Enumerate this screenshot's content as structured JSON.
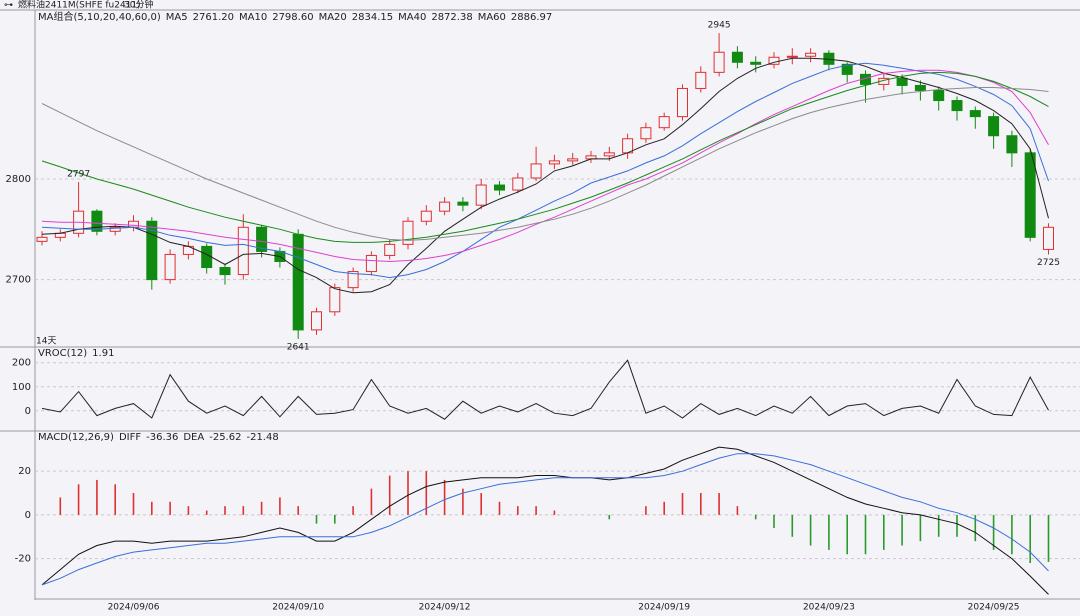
{
  "header": {
    "title": "燃料油2411M(SHFE fu2411)",
    "period": "30分钟"
  },
  "chart_data": [
    {
      "type": "candlestick",
      "legend_title": "MA组合(5,10,20,40,60,0)",
      "note": "14天",
      "ylim": [
        2633,
        2966
      ],
      "yticks": [
        2700,
        2800
      ],
      "grid": true,
      "up_color": "#e03030",
      "down_color": "#118a11",
      "open": [
        2738,
        2742,
        2746,
        2768,
        2748,
        2752,
        2758,
        2700,
        2725,
        2733,
        2712,
        2705,
        2752,
        2728,
        2745,
        2650,
        2668,
        2692,
        2708,
        2724,
        2735,
        2758,
        2768,
        2777,
        2774,
        2794,
        2789,
        2801,
        2815,
        2818,
        2820,
        2823,
        2826,
        2840,
        2851,
        2862,
        2890,
        2906,
        2926,
        2916,
        2914,
        2921,
        2922,
        2925,
        2914,
        2904,
        2894,
        2900,
        2893,
        2888,
        2878,
        2868,
        2862,
        2843,
        2826,
        2730
      ],
      "high": [
        2748,
        2750,
        2797,
        2770,
        2756,
        2764,
        2762,
        2730,
        2738,
        2736,
        2716,
        2765,
        2754,
        2732,
        2750,
        2672,
        2696,
        2712,
        2728,
        2740,
        2762,
        2774,
        2782,
        2782,
        2800,
        2798,
        2806,
        2832,
        2824,
        2826,
        2828,
        2832,
        2845,
        2856,
        2866,
        2894,
        2912,
        2945,
        2932,
        2922,
        2926,
        2930,
        2930,
        2928,
        2916,
        2908,
        2906,
        2904,
        2898,
        2892,
        2882,
        2872,
        2866,
        2848,
        2830,
        2756
      ],
      "low": [
        2734,
        2738,
        2742,
        2744,
        2744,
        2748,
        2690,
        2696,
        2720,
        2706,
        2695,
        2700,
        2722,
        2712,
        2641,
        2645,
        2664,
        2688,
        2704,
        2720,
        2730,
        2754,
        2764,
        2768,
        2770,
        2784,
        2786,
        2798,
        2810,
        2814,
        2816,
        2818,
        2820,
        2836,
        2848,
        2858,
        2886,
        2902,
        2910,
        2906,
        2910,
        2914,
        2916,
        2908,
        2896,
        2876,
        2888,
        2884,
        2878,
        2868,
        2858,
        2850,
        2830,
        2812,
        2738,
        2725
      ],
      "close": [
        2742,
        2746,
        2768,
        2748,
        2752,
        2758,
        2700,
        2725,
        2733,
        2712,
        2705,
        2752,
        2728,
        2718,
        2650,
        2668,
        2692,
        2708,
        2724,
        2735,
        2758,
        2768,
        2777,
        2774,
        2794,
        2789,
        2801,
        2815,
        2818,
        2820,
        2823,
        2826,
        2840,
        2851,
        2862,
        2890,
        2906,
        2926,
        2916,
        2914,
        2921,
        2922,
        2925,
        2914,
        2904,
        2894,
        2900,
        2893,
        2888,
        2878,
        2868,
        2862,
        2843,
        2826,
        2742,
        2752
      ],
      "annotations": [
        {
          "value": 2797,
          "label": "2797"
        },
        {
          "value": 2945,
          "label": "2945"
        },
        {
          "value": 2641,
          "label": "2641"
        },
        {
          "value": 2725,
          "label": "2725"
        }
      ],
      "series": [
        {
          "name": "MA5",
          "readout": "2761.20",
          "color": "#222222",
          "values": [
            2745,
            2746,
            2750,
            2752,
            2753,
            2752,
            2745,
            2737,
            2733,
            2725,
            2715,
            2725,
            2726,
            2723,
            2710,
            2702,
            2691,
            2687,
            2688,
            2695,
            2715,
            2731,
            2748,
            2760,
            2772,
            2780,
            2787,
            2795,
            2808,
            2813,
            2820,
            2820,
            2826,
            2834,
            2840,
            2854,
            2870,
            2887,
            2900,
            2910,
            2916,
            2920,
            2920,
            2919,
            2917,
            2912,
            2905,
            2901,
            2896,
            2891,
            2885,
            2878,
            2868,
            2855,
            2830,
            2761
          ]
        },
        {
          "name": "MA10",
          "readout": "2798.60",
          "color": "#3a6fd8",
          "values": [
            2752,
            2751,
            2750,
            2750,
            2751,
            2752,
            2749,
            2744,
            2741,
            2737,
            2734,
            2735,
            2731,
            2728,
            2722,
            2715,
            2708,
            2706,
            2705,
            2702,
            2705,
            2710,
            2718,
            2728,
            2740,
            2752,
            2760,
            2769,
            2778,
            2786,
            2796,
            2802,
            2808,
            2816,
            2823,
            2833,
            2845,
            2856,
            2867,
            2877,
            2886,
            2895,
            2902,
            2909,
            2913,
            2915,
            2913,
            2910,
            2907,
            2904,
            2899,
            2892,
            2884,
            2873,
            2850,
            2798
          ]
        },
        {
          "name": "MA20",
          "readout": "2834.15",
          "color": "#e040d0",
          "values": [
            2758,
            2757,
            2757,
            2756,
            2755,
            2754,
            2752,
            2750,
            2748,
            2745,
            2742,
            2740,
            2738,
            2735,
            2731,
            2727,
            2723,
            2720,
            2719,
            2718,
            2719,
            2721,
            2724,
            2728,
            2734,
            2740,
            2747,
            2755,
            2762,
            2770,
            2778,
            2786,
            2794,
            2800,
            2808,
            2816,
            2826,
            2836,
            2845,
            2855,
            2864,
            2872,
            2880,
            2888,
            2895,
            2900,
            2905,
            2907,
            2908,
            2908,
            2906,
            2902,
            2896,
            2887,
            2866,
            2834
          ]
        },
        {
          "name": "MA40",
          "readout": "2872.38",
          "color": "#1a8a1a",
          "values": [
            2818,
            2812,
            2806,
            2800,
            2795,
            2790,
            2784,
            2778,
            2772,
            2767,
            2762,
            2758,
            2754,
            2750,
            2745,
            2741,
            2738,
            2737,
            2737,
            2738,
            2740,
            2742,
            2745,
            2748,
            2752,
            2756,
            2760,
            2765,
            2770,
            2776,
            2782,
            2789,
            2796,
            2804,
            2812,
            2820,
            2829,
            2838,
            2846,
            2854,
            2862,
            2870,
            2876,
            2882,
            2888,
            2893,
            2898,
            2902,
            2905,
            2906,
            2905,
            2902,
            2897,
            2890,
            2882,
            2872
          ]
        },
        {
          "name": "MA60",
          "readout": "2886.97",
          "color": "#8c8c8c",
          "values": [
            2875,
            2866,
            2857,
            2848,
            2840,
            2832,
            2824,
            2816,
            2808,
            2800,
            2793,
            2786,
            2779,
            2772,
            2765,
            2758,
            2752,
            2747,
            2743,
            2740,
            2739,
            2740,
            2742,
            2744,
            2746,
            2749,
            2752,
            2756,
            2760,
            2765,
            2771,
            2778,
            2786,
            2794,
            2803,
            2812,
            2821,
            2830,
            2838,
            2846,
            2853,
            2860,
            2866,
            2871,
            2875,
            2879,
            2882,
            2885,
            2887,
            2889,
            2890,
            2891,
            2891,
            2890,
            2889,
            2887
          ]
        }
      ]
    },
    {
      "type": "line",
      "ylim": [
        -80,
        253
      ],
      "yticks": [
        0,
        100,
        200
      ],
      "grid": true,
      "series": [
        {
          "name": "VROC(12)",
          "readout": "1.91",
          "color": "#222222",
          "values": [
            10,
            -5,
            80,
            -20,
            10,
            30,
            -30,
            150,
            40,
            -10,
            20,
            -20,
            60,
            -25,
            60,
            -15,
            -10,
            5,
            130,
            20,
            -10,
            10,
            -35,
            40,
            -10,
            20,
            -5,
            30,
            -10,
            -20,
            10,
            120,
            210,
            -10,
            20,
            -30,
            30,
            -15,
            10,
            -20,
            20,
            -10,
            60,
            -20,
            20,
            30,
            -20,
            10,
            20,
            -10,
            130,
            20,
            -15,
            -20,
            140,
            2
          ]
        }
      ]
    },
    {
      "type": "macd",
      "legend_title": "MACD(12,26,9)",
      "ylim": [
        -38,
        37
      ],
      "yticks": [
        -20,
        0,
        20
      ],
      "grid": true,
      "categories": [
        null,
        null,
        null,
        null,
        null,
        "2024/09/06",
        null,
        null,
        null,
        null,
        null,
        null,
        null,
        null,
        "2024/09/10",
        null,
        null,
        null,
        null,
        null,
        null,
        null,
        "2024/09/12",
        null,
        null,
        null,
        null,
        null,
        null,
        null,
        null,
        null,
        null,
        null,
        "2024/09/19",
        null,
        null,
        null,
        null,
        null,
        null,
        null,
        null,
        "2024/09/23",
        null,
        null,
        null,
        null,
        null,
        null,
        null,
        null,
        "2024/09/25",
        null,
        null,
        null
      ],
      "series": [
        {
          "name": "DIFF",
          "readout": "-36.36",
          "color": "#111111",
          "values": [
            -32,
            -25,
            -18,
            -14,
            -12,
            -12,
            -13,
            -12,
            -12,
            -12,
            -11,
            -10,
            -8,
            -6,
            -8,
            -12,
            -12,
            -8,
            -2,
            4,
            9,
            13,
            15,
            16,
            17,
            17,
            17,
            18,
            18,
            17,
            17,
            16,
            17,
            19,
            21,
            25,
            28,
            31,
            30,
            27,
            24,
            20,
            16,
            12,
            8,
            5,
            3,
            1,
            0,
            -2,
            -4,
            -8,
            -14,
            -20,
            -28,
            -36.36
          ]
        },
        {
          "name": "DEA",
          "readout": "-25.62",
          "color": "#3a6fd8",
          "values": [
            -32,
            -29,
            -25,
            -22,
            -19,
            -17,
            -16,
            -15,
            -14,
            -13,
            -13,
            -12,
            -11,
            -10,
            -10,
            -10,
            -10,
            -10,
            -8,
            -5,
            -1,
            3,
            7,
            10,
            12,
            14,
            15,
            16,
            17,
            17,
            17,
            17,
            17,
            17,
            18,
            20,
            23,
            26,
            28,
            28,
            27,
            25,
            23,
            20,
            17,
            14,
            11,
            8,
            6,
            3,
            1,
            -2,
            -6,
            -11,
            -17,
            -25.62
          ]
        }
      ],
      "bars": {
        "readout": "-21.48",
        "up_color": "#e03030",
        "down_color": "#2a9a2a",
        "values": [
          0,
          8,
          14,
          16,
          14,
          10,
          6,
          6,
          4,
          2,
          4,
          4,
          6,
          8,
          4,
          -4,
          -4,
          4,
          12,
          18,
          20,
          20,
          16,
          12,
          10,
          6,
          4,
          4,
          2,
          0,
          0,
          -2,
          0,
          4,
          6,
          10,
          10,
          10,
          4,
          -2,
          -6,
          -10,
          -14,
          -16,
          -18,
          -18,
          -16,
          -14,
          -12,
          -10,
          -10,
          -12,
          -16,
          -18,
          -22,
          -21.48
        ]
      }
    }
  ]
}
